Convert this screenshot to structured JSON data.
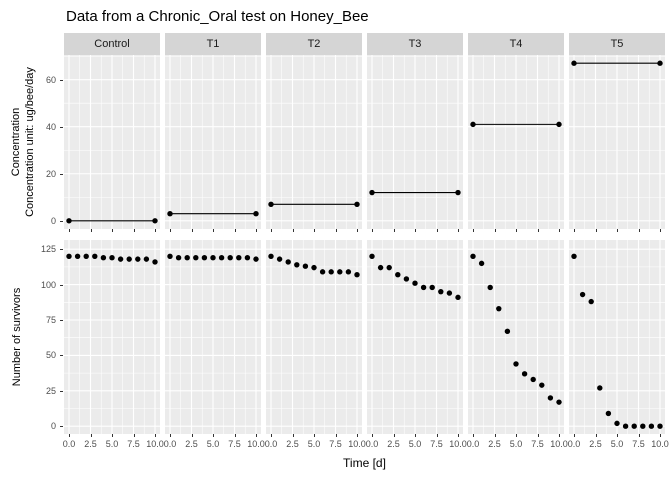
{
  "title": "Data from a Chronic_Oral test on Honey_Bee",
  "colors": {
    "panel_bg": "#EBEBEB",
    "strip_bg": "#D5D5D5",
    "gridline": "#FFFFFF",
    "point": "#000000",
    "axis_text": "#4D4D4D",
    "tick_mark": "#333333",
    "title_text": "#000000"
  },
  "chart_data": {
    "type": "scatter",
    "title": "Data from a Chronic_Oral test on Honey_Bee",
    "facets": [
      "Control",
      "T1",
      "T2",
      "T3",
      "T4",
      "T5"
    ],
    "x": [
      0,
      1,
      2,
      3,
      4,
      5,
      6,
      7,
      8,
      9,
      10
    ],
    "xlabel": "Time [d]",
    "xtick_labels": [
      "0.0",
      "2.5",
      "5.0",
      "7.5",
      "10.0"
    ],
    "xtick_values": [
      0,
      2.5,
      5,
      7.5,
      10
    ],
    "x_minor": [
      1.25,
      3.75,
      6.25,
      8.75
    ],
    "top_row": {
      "ylabel_lines": [
        "Concentration",
        "Concentration unit: ug/bee/day"
      ],
      "yticks": [
        0,
        20,
        40,
        60
      ],
      "y_minor": [
        10,
        30,
        50,
        70
      ],
      "ylim": [
        -3.5,
        70.5
      ],
      "segment_days": [
        0,
        10
      ],
      "concentrations": [
        0,
        3,
        7,
        12,
        41,
        67
      ]
    },
    "bottom_row": {
      "ylabel": "Number of survivors",
      "yticks": [
        0,
        25,
        50,
        75,
        100,
        125
      ],
      "y_minor": [
        12.5,
        37.5,
        62.5,
        87.5,
        112.5
      ],
      "ylim": [
        -5.5,
        131.5
      ],
      "series": [
        {
          "name": "Control",
          "values": [
            120,
            120,
            120,
            120,
            119,
            119,
            118,
            118,
            118,
            118,
            116
          ]
        },
        {
          "name": "T1",
          "values": [
            120,
            119,
            119,
            119,
            119,
            119,
            119,
            119,
            119,
            119,
            118
          ]
        },
        {
          "name": "T2",
          "values": [
            120,
            118,
            116,
            114,
            113,
            112,
            109,
            109,
            109,
            109,
            107
          ]
        },
        {
          "name": "T3",
          "values": [
            120,
            112,
            112,
            107,
            104,
            101,
            98,
            98,
            95,
            94,
            91
          ]
        },
        {
          "name": "T4",
          "values": [
            120,
            115,
            98,
            83,
            67,
            44,
            37,
            33,
            29,
            20,
            17
          ]
        },
        {
          "name": "T5",
          "values": [
            120,
            93,
            88,
            27,
            9,
            2,
            0,
            0,
            0,
            0,
            0
          ]
        }
      ]
    },
    "grid": true,
    "legend": "none"
  }
}
